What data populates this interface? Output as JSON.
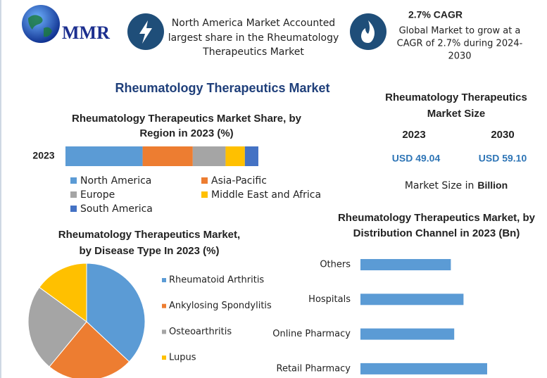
{
  "header": {
    "logo": "MMR",
    "highlight_lines": [
      "North America Market Accounted",
      "largest share in the Rheumatology",
      "Therapeutics Market"
    ],
    "cagr_title": "2.7% CAGR",
    "cagr_lines": [
      "Global Market to grow at a",
      "CAGR of 2.7% during 2024-",
      "2030"
    ]
  },
  "title": "Rheumatology Therapeutics Market",
  "market_size": {
    "title_lines": [
      "Rheumatology Therapeutics",
      "Market Size"
    ],
    "years": [
      "2023",
      "2030"
    ],
    "values": [
      "USD 49.04",
      "USD 59.10"
    ],
    "note": "Market Size in",
    "note_unit": "Billion"
  },
  "chart_data": [
    {
      "type": "stacked_bar",
      "title_lines": [
        "Rheumatology Therapeutics Market Share, by",
        "Region in 2023 (%)"
      ],
      "categories": [
        "2023"
      ],
      "xlim": [
        0,
        100
      ],
      "series": [
        {
          "name": "North America",
          "color": "#5b9bd5",
          "values": [
            40
          ]
        },
        {
          "name": "Asia-Pacific",
          "color": "#ed7d31",
          "values": [
            26
          ]
        },
        {
          "name": "Europe",
          "color": "#a5a5a5",
          "values": [
            17
          ]
        },
        {
          "name": "Middle East and Africa",
          "color": "#ffc000",
          "values": [
            10
          ]
        },
        {
          "name": "South America",
          "color": "#4472c4",
          "values": [
            7
          ]
        }
      ]
    },
    {
      "type": "pie",
      "title_lines": [
        "Rheumatology Therapeutics Market,",
        "by Disease Type In 2023 (%)"
      ],
      "categories": [
        "Rheumatoid Arthritis",
        "Ankylosing Spondylitis",
        "Osteoarthritis",
        "Lupus"
      ],
      "values": [
        37,
        24,
        24,
        15
      ],
      "colors": [
        "#5b9bd5",
        "#ed7d31",
        "#a5a5a5",
        "#ffc000"
      ]
    },
    {
      "type": "bar",
      "title_lines": [
        "Rheumatology Therapeutics Market, by",
        "Distribution Channel in 2023 (Bn)"
      ],
      "categories": [
        "Others",
        "Hospitals",
        "Online Pharmacy",
        "Retail Pharmacy"
      ],
      "values": [
        10.7,
        12.2,
        11.1,
        15.0
      ],
      "color": "#5b9bd5",
      "xlim": [
        0,
        20
      ]
    }
  ]
}
